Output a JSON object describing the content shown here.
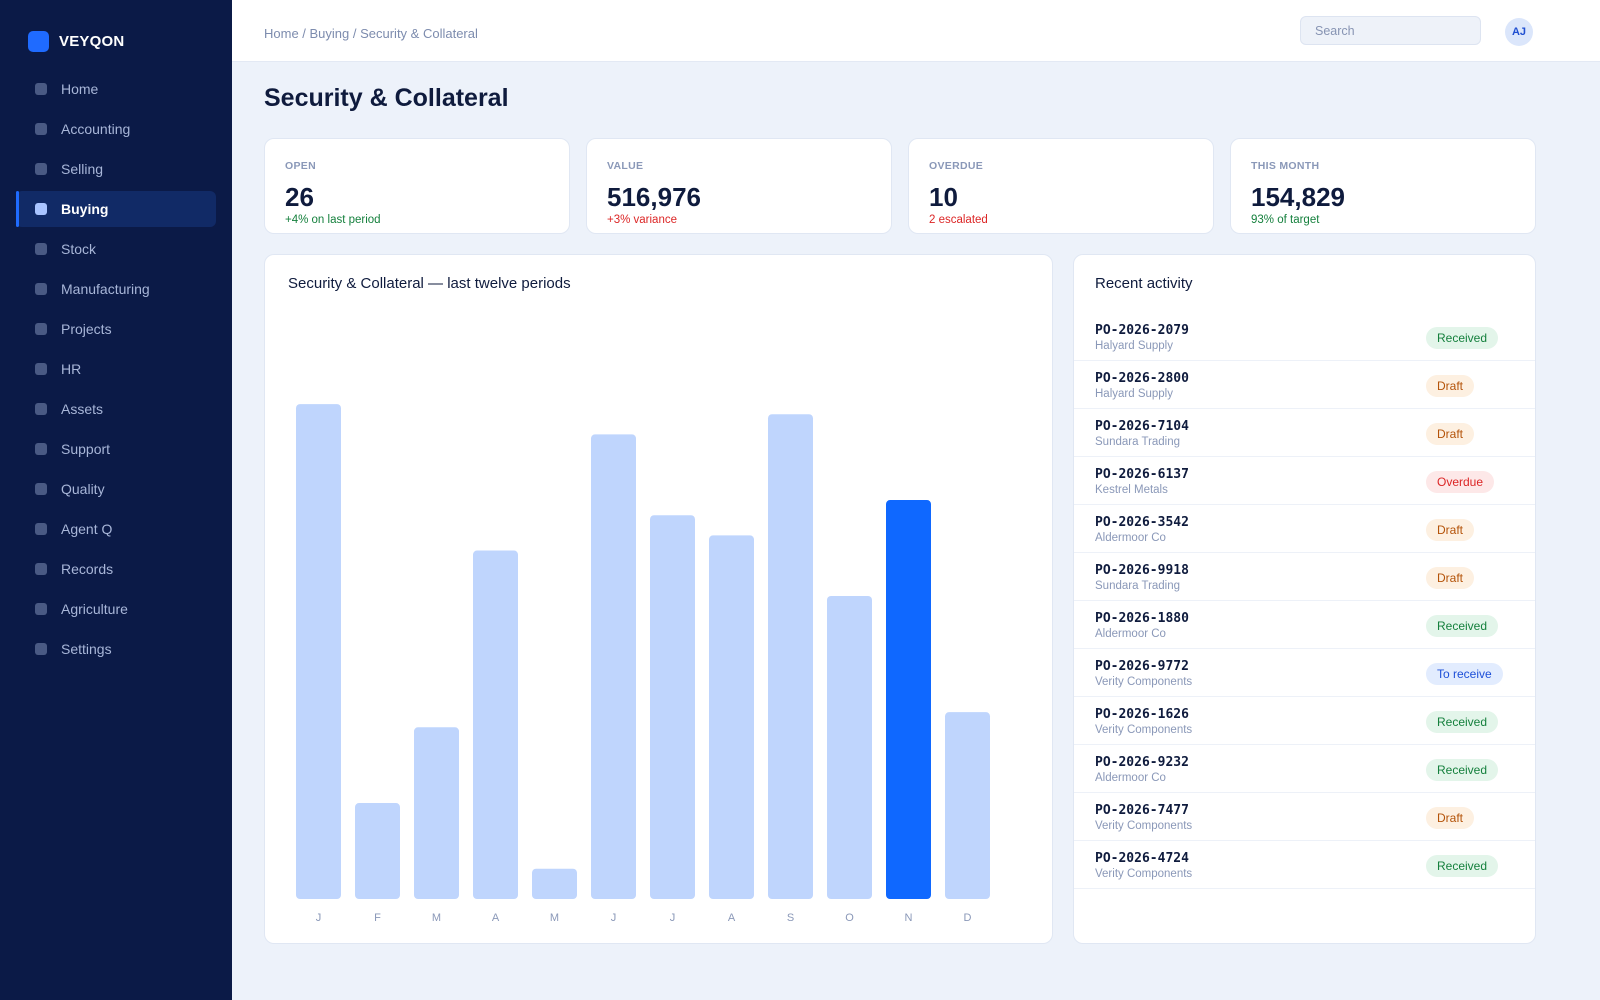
{
  "app": {
    "brand": "VEYQON"
  },
  "nav": {
    "items": [
      {
        "label": "Home",
        "active": false
      },
      {
        "label": "Accounting",
        "active": false
      },
      {
        "label": "Selling",
        "active": false
      },
      {
        "label": "Buying",
        "active": true
      },
      {
        "label": "Stock",
        "active": false
      },
      {
        "label": "Manufacturing",
        "active": false
      },
      {
        "label": "Projects",
        "active": false
      },
      {
        "label": "HR",
        "active": false
      },
      {
        "label": "Assets",
        "active": false
      },
      {
        "label": "Support",
        "active": false
      },
      {
        "label": "Quality",
        "active": false
      },
      {
        "label": "Agent Q",
        "active": false
      },
      {
        "label": "Records",
        "active": false
      },
      {
        "label": "Agriculture",
        "active": false
      },
      {
        "label": "Settings",
        "active": false
      }
    ]
  },
  "header": {
    "breadcrumb": "Home / Buying / Security & Collateral",
    "search_placeholder": "Search",
    "avatar_initials": "AJ"
  },
  "page": {
    "title": "Security & Collateral"
  },
  "kpis": [
    {
      "label": "OPEN",
      "value": "26",
      "delta": "+4% on last period",
      "tone": "pos"
    },
    {
      "label": "VALUE",
      "value": "516,976",
      "delta": "+3% variance",
      "tone": "neg"
    },
    {
      "label": "OVERDUE",
      "value": "10",
      "delta": "2 escalated",
      "tone": "neg"
    },
    {
      "label": "THIS MONTH",
      "value": "154,829",
      "delta": "93% of target",
      "tone": "pos"
    }
  ],
  "chart_data": {
    "type": "bar",
    "title": "Security & Collateral — last twelve periods",
    "categories": [
      "J",
      "F",
      "M",
      "A",
      "M",
      "J",
      "J",
      "A",
      "S",
      "O",
      "N",
      "D"
    ],
    "values": [
      98,
      19,
      34,
      69,
      6,
      92,
      76,
      72,
      96,
      60,
      79,
      37
    ],
    "highlight_index": 10,
    "ylim": [
      0,
      100
    ],
    "grid": false,
    "colors": {
      "bar": "#bfd5fd",
      "highlight": "#0f68ff",
      "tick": "#8a98b8"
    }
  },
  "activity": {
    "title": "Recent activity",
    "items": [
      {
        "id": "PO-2026-2079",
        "party": "Halyard Supply",
        "status": "Received",
        "kind": "received"
      },
      {
        "id": "PO-2026-2800",
        "party": "Halyard Supply",
        "status": "Draft",
        "kind": "draft"
      },
      {
        "id": "PO-2026-7104",
        "party": "Sundara Trading",
        "status": "Draft",
        "kind": "draft"
      },
      {
        "id": "PO-2026-6137",
        "party": "Kestrel Metals",
        "status": "Overdue",
        "kind": "overdue"
      },
      {
        "id": "PO-2026-3542",
        "party": "Aldermoor Co",
        "status": "Draft",
        "kind": "draft"
      },
      {
        "id": "PO-2026-9918",
        "party": "Sundara Trading",
        "status": "Draft",
        "kind": "draft"
      },
      {
        "id": "PO-2026-1880",
        "party": "Aldermoor Co",
        "status": "Received",
        "kind": "received"
      },
      {
        "id": "PO-2026-9772",
        "party": "Verity Components",
        "status": "To receive",
        "kind": "toreceive"
      },
      {
        "id": "PO-2026-1626",
        "party": "Verity Components",
        "status": "Received",
        "kind": "received"
      },
      {
        "id": "PO-2026-9232",
        "party": "Aldermoor Co",
        "status": "Received",
        "kind": "received"
      },
      {
        "id": "PO-2026-7477",
        "party": "Verity Components",
        "status": "Draft",
        "kind": "draft"
      },
      {
        "id": "PO-2026-4724",
        "party": "Verity Components",
        "status": "Received",
        "kind": "received"
      }
    ]
  }
}
